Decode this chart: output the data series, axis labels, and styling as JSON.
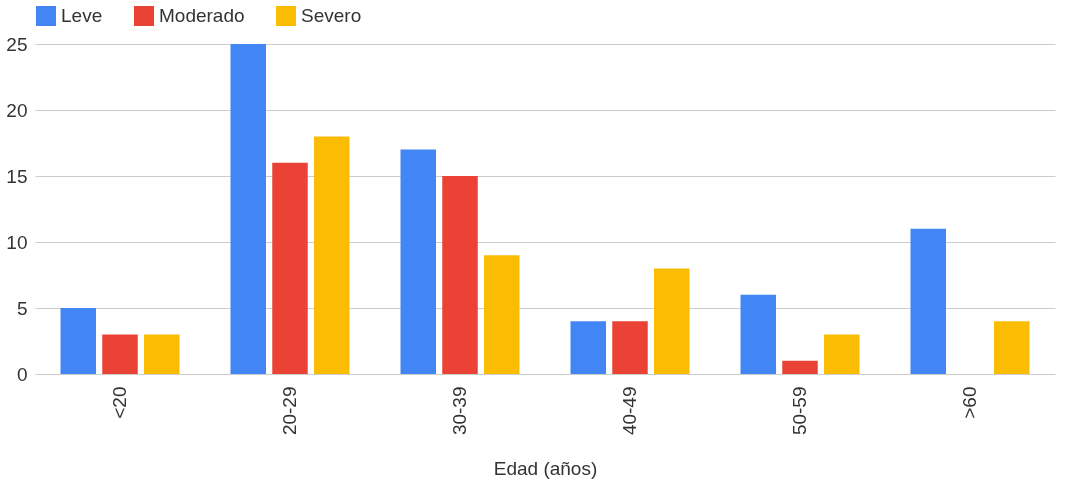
{
  "chart_data": {
    "type": "bar",
    "xlabel": "Edad (años)",
    "categories": [
      "<20",
      "20-29",
      "30-39",
      "40-49",
      "50-59",
      ">60"
    ],
    "series": [
      {
        "name": "Leve",
        "color": "#4285f4",
        "values": [
          5,
          25,
          17,
          4,
          6,
          11
        ]
      },
      {
        "name": "Moderado",
        "color": "#ea4335",
        "values": [
          3,
          16,
          15,
          4,
          1,
          0
        ]
      },
      {
        "name": "Severo",
        "color": "#fbbc04",
        "values": [
          3,
          18,
          9,
          8,
          3,
          4
        ]
      }
    ],
    "ylim": [
      0,
      25
    ],
    "yticks": [
      0,
      5,
      10,
      15,
      20,
      25
    ],
    "grid": "y",
    "legend": "top"
  }
}
